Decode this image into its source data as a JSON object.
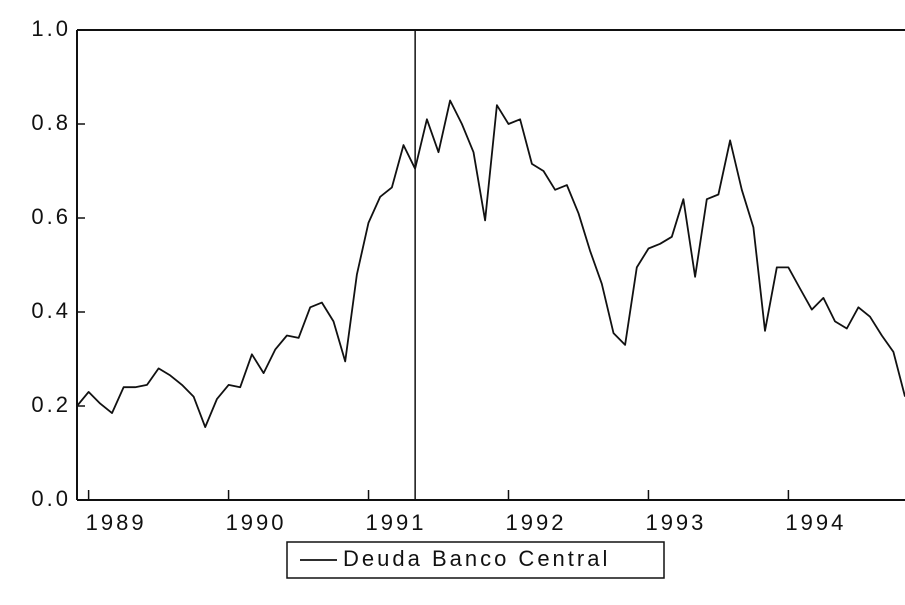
{
  "chart_data": {
    "type": "line",
    "x": [
      1988.917,
      1989.0,
      1989.083,
      1989.167,
      1989.25,
      1989.333,
      1989.417,
      1989.5,
      1989.583,
      1989.667,
      1989.75,
      1989.833,
      1989.917,
      1990.0,
      1990.083,
      1990.167,
      1990.25,
      1990.333,
      1990.417,
      1990.5,
      1990.583,
      1990.667,
      1990.75,
      1990.833,
      1990.917,
      1991.0,
      1991.083,
      1991.167,
      1991.25,
      1991.333,
      1991.417,
      1991.5,
      1991.583,
      1991.667,
      1991.75,
      1991.833,
      1991.917,
      1992.0,
      1992.083,
      1992.167,
      1992.25,
      1992.333,
      1992.417,
      1992.5,
      1992.583,
      1992.667,
      1992.75,
      1992.833,
      1992.917,
      1993.0,
      1993.083,
      1993.167,
      1993.25,
      1993.333,
      1993.417,
      1993.5,
      1993.583,
      1993.667,
      1993.75,
      1993.833,
      1993.917,
      1994.0,
      1994.083,
      1994.167,
      1994.25,
      1994.333,
      1994.417,
      1994.5,
      1994.583,
      1994.667,
      1994.75,
      1994.833
    ],
    "series": [
      {
        "name": "Deuda Banco Central",
        "color": "#111111",
        "values": [
          0.2,
          0.23,
          0.205,
          0.185,
          0.24,
          0.24,
          0.245,
          0.28,
          0.265,
          0.245,
          0.22,
          0.155,
          0.215,
          0.245,
          0.24,
          0.31,
          0.27,
          0.32,
          0.35,
          0.345,
          0.41,
          0.42,
          0.38,
          0.295,
          0.48,
          0.59,
          0.645,
          0.665,
          0.755,
          0.705,
          0.81,
          0.74,
          0.85,
          0.8,
          0.74,
          0.595,
          0.84,
          0.8,
          0.81,
          0.715,
          0.7,
          0.66,
          0.67,
          0.61,
          0.53,
          0.46,
          0.355,
          0.33,
          0.495,
          0.535,
          0.545,
          0.56,
          0.64,
          0.475,
          0.64,
          0.65,
          0.765,
          0.66,
          0.58,
          0.36,
          0.495,
          0.495,
          0.45,
          0.405,
          0.43,
          0.38,
          0.365,
          0.41,
          0.39,
          0.35,
          0.315,
          0.22
        ]
      }
    ],
    "xlim": [
      1988.917,
      1994.833
    ],
    "xticks": [
      1989,
      1990,
      1991,
      1992,
      1993,
      1994
    ],
    "ylim": [
      0,
      1
    ],
    "yticks": [
      {
        "value": 0,
        "label": "0.0"
      },
      0.2,
      0.4,
      0.6,
      0.8,
      {
        "value": 1,
        "label": "1.0"
      }
    ],
    "vline": 1991.333,
    "grid": false
  }
}
